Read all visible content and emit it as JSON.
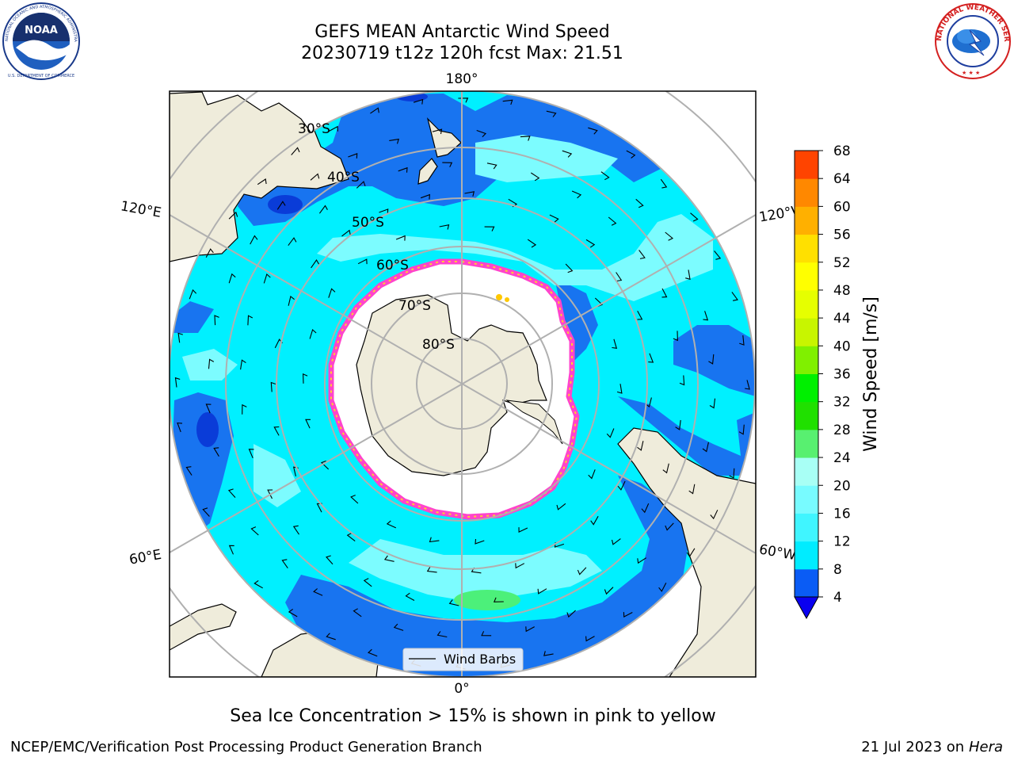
{
  "header": {
    "title_line1": "GEFS MEAN Antarctic Wind Speed",
    "title_line2": "20230719 t12z 120h fcst   Max: 21.51"
  },
  "logos": {
    "noaa_text": "NOAA",
    "noaa_ring_text": "NATIONAL OCEANIC AND ATMOSPHERIC ADMINISTRATION",
    "noaa_ring_bottom": "U.S. DEPARTMENT OF COMMERCE",
    "nws_ring_text": "NATIONAL WEATHER SERVICE"
  },
  "map": {
    "projection": "south-polar-stereographic",
    "lon_labels": {
      "top": "180°",
      "bottom": "0°",
      "left_upper": "120°E",
      "left_lower": "60°E",
      "right_upper": "120°W",
      "right_lower": "60°W"
    },
    "lat_labels": [
      "30°S",
      "40°S",
      "50°S",
      "60°S",
      "70°S",
      "80°S"
    ],
    "legend": {
      "label": "Wind Barbs"
    },
    "colors": {
      "land": "#efecdb",
      "ocean_blue": "#1874f0",
      "cyan": "#00f0ff",
      "light_cyan": "#7cfcff",
      "sea_ice": "#ffffff",
      "ice_edge": "#ff44cc",
      "grid": "#b0b0b0"
    }
  },
  "colorbar": {
    "label": "Wind Speed [m/s]",
    "ticks": [
      "4",
      "8",
      "12",
      "16",
      "20",
      "24",
      "28",
      "32",
      "36",
      "40",
      "44",
      "48",
      "52",
      "56",
      "60",
      "64",
      "68"
    ],
    "colors": [
      "#0a5cf5",
      "#00ecff",
      "#40f5ff",
      "#78fbff",
      "#a8fff5",
      "#58f070",
      "#20e000",
      "#00f000",
      "#80f000",
      "#c8f500",
      "#e6ff00",
      "#ffff00",
      "#ffe000",
      "#ffb000",
      "#ff8800",
      "#ff4400",
      "#ff1a00"
    ]
  },
  "caption": "Sea Ice Concentration > 15% is shown in pink to yellow",
  "footer": {
    "left": "NCEP/EMC/Verification Post Processing Product Generation Branch",
    "right_date": "21 Jul 2023 on ",
    "right_machine": "Hera"
  }
}
